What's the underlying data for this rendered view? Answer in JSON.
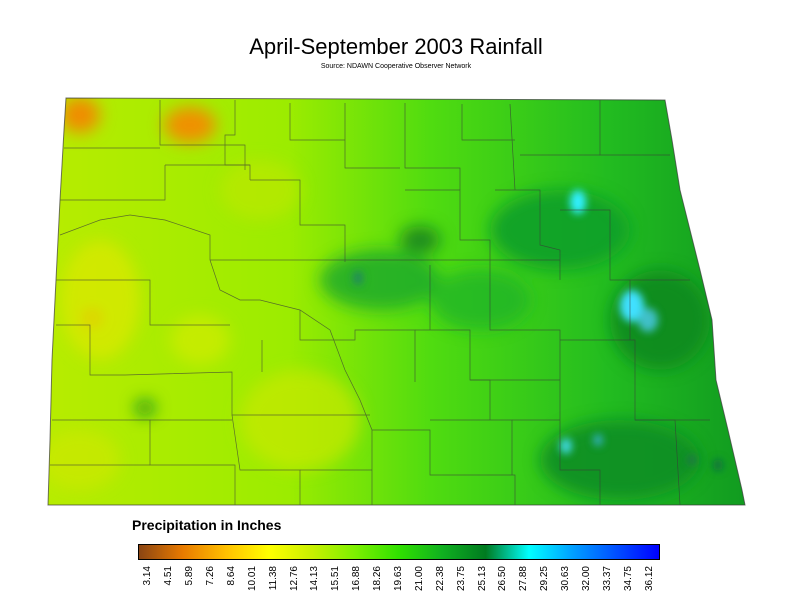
{
  "title": "April-September 2003 Rainfall",
  "subtitle": "Source: NDAWN Cooperative Observer Network",
  "legend": {
    "title": "Precipitation in Inches",
    "ticks": [
      "3.14",
      "4.51",
      "5.89",
      "7.26",
      "8.64",
      "10.01",
      "11.38",
      "12.76",
      "14.13",
      "15.51",
      "16.88",
      "18.26",
      "19.63",
      "21.00",
      "22.38",
      "23.75",
      "25.13",
      "26.50",
      "27.88",
      "29.25",
      "30.63",
      "32.00",
      "33.37",
      "34.75",
      "36.12"
    ],
    "colors": [
      "#8b4513",
      "#e87a00",
      "#ffc000",
      "#ffff00",
      "#c8f000",
      "#7cf000",
      "#30e000",
      "#10b020",
      "#007a20",
      "#00ffff",
      "#00a0ff",
      "#0050ff",
      "#0000ff"
    ]
  }
}
